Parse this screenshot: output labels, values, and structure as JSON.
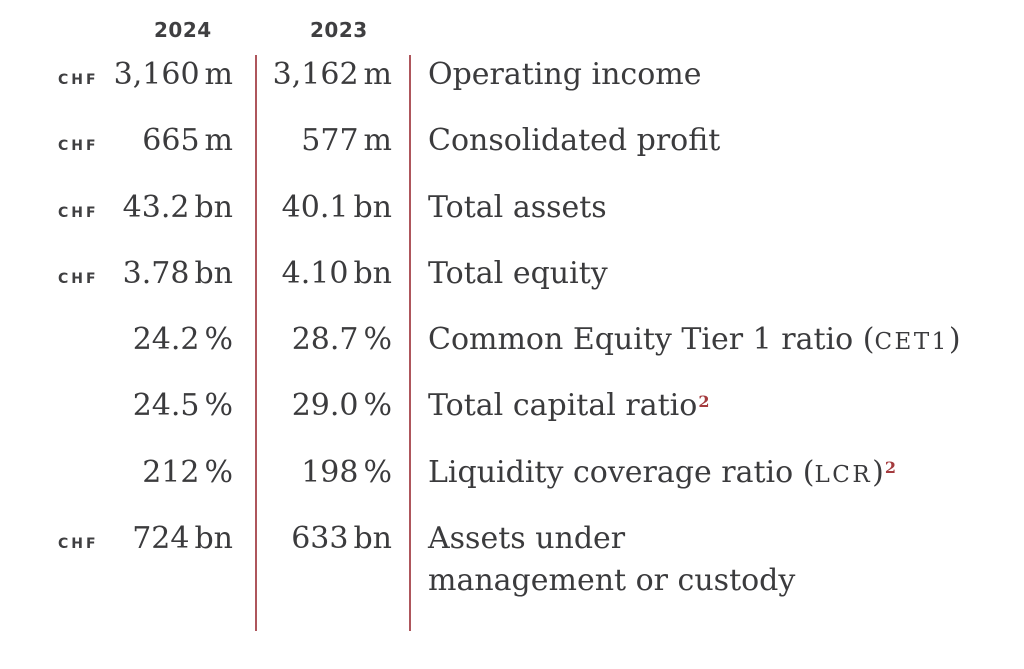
{
  "page": {
    "background": "#ffffff",
    "text_color": "#3b3b3d",
    "divider_red": "#ae565c",
    "footnote_red": "#a43b3e"
  },
  "table": {
    "column_headers": {
      "y2024": "2024",
      "y2023": "2023"
    },
    "rows": [
      {
        "currency": "CHF",
        "v2024": {
          "num": "3,160",
          "unit": "m"
        },
        "v2023": {
          "num": "3,162",
          "unit": "m"
        },
        "label": {
          "pre": "Operating income"
        }
      },
      {
        "currency": "CHF",
        "v2024": {
          "num": "665",
          "unit": "m"
        },
        "v2023": {
          "num": "577",
          "unit": "m"
        },
        "label": {
          "pre": "Consolidated profit"
        }
      },
      {
        "currency": "CHF",
        "v2024": {
          "num": "43.2",
          "unit": "bn"
        },
        "v2023": {
          "num": "40.1",
          "unit": "bn"
        },
        "label": {
          "pre": "Total assets"
        }
      },
      {
        "currency": "CHF",
        "v2024": {
          "num": "3.78",
          "unit": "bn"
        },
        "v2023": {
          "num": "4.10",
          "unit": "bn"
        },
        "label": {
          "pre": "Total equity"
        }
      },
      {
        "currency": "",
        "v2024": {
          "num": "24.2",
          "unit": "%"
        },
        "v2023": {
          "num": "28.7",
          "unit": "%"
        },
        "label": {
          "pre": "Common Equity Tier 1 ratio (",
          "caps": "CET1",
          "post": ")"
        }
      },
      {
        "currency": "",
        "v2024": {
          "num": "24.5",
          "unit": "%"
        },
        "v2023": {
          "num": "29.0",
          "unit": "%"
        },
        "label": {
          "pre": "Total capital ratio",
          "sup": "2"
        }
      },
      {
        "currency": "",
        "v2024": {
          "num": "212",
          "unit": "%"
        },
        "v2023": {
          "num": "198",
          "unit": "%"
        },
        "label": {
          "pre": "Liquidity coverage ratio (",
          "caps": "LCR",
          "post": ")",
          "sup": "2"
        }
      },
      {
        "currency": "CHF",
        "v2024": {
          "num": "724",
          "unit": "bn"
        },
        "v2023": {
          "num": "633",
          "unit": "bn"
        },
        "label": {
          "pre": "Assets under",
          "line2": "management or custody"
        }
      }
    ]
  }
}
